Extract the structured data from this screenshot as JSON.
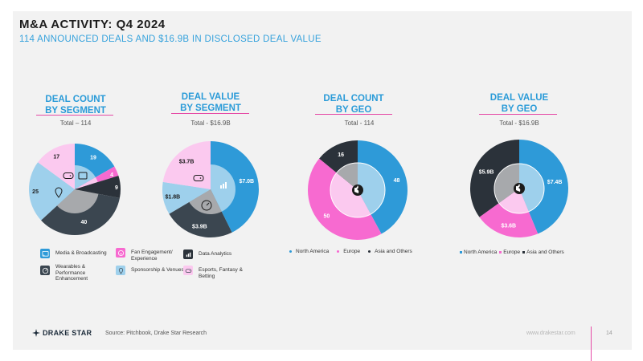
{
  "header": {
    "title": "M&A ACTIVITY: Q4 2024",
    "subtitle": "114 ANNOUNCED DEALS AND $16.9B IN DISCLOSED DEAL VALUE"
  },
  "colors": {
    "blue": "#2e9ad8",
    "pink": "#f76ad0",
    "dark": "#2b323a",
    "light_blue": "#9ed0ec",
    "light_pink": "#fbc9ef",
    "slate": "#3b4650",
    "gray_inner": "#a7a9ac"
  },
  "chart_data": [
    {
      "type": "pie",
      "title_line1": "DEAL COUNT",
      "title_line2": "BY SEGMENT",
      "total": "Total – 114",
      "labels": [
        "Media & Broadcasting",
        "Fan Engagement/ Experience",
        "Data Analytics",
        "Wearables & Performance Enhancement",
        "Sponsorship & Venues",
        "Esports, Fantasy & Betting"
      ],
      "values": [
        19,
        4,
        9,
        40,
        25,
        17
      ],
      "value_labels": [
        "19",
        "4",
        "9",
        "40",
        "25",
        "17"
      ]
    },
    {
      "type": "pie",
      "title_line1": "DEAL VALUE",
      "title_line2": "BY SEGMENT",
      "total": "Total - $16.9B",
      "labels": [
        "Media & Broadcasting",
        "Wearables & Performance Enhancement",
        "Sponsorship & Venues",
        "Esports, Fantasy & Betting"
      ],
      "values": [
        7.0,
        3.9,
        1.8,
        3.7
      ],
      "value_labels": [
        "$7.0B",
        "$3.9B",
        "$1.8B",
        "$3.7B"
      ]
    },
    {
      "type": "pie",
      "title_line1": "DEAL COUNT",
      "title_line2": "BY GEO",
      "total": "Total - 114",
      "labels": [
        "North America",
        "Europe",
        "Asia and Others"
      ],
      "values": [
        48,
        50,
        16
      ],
      "value_labels": [
        "48",
        "50",
        "16"
      ]
    },
    {
      "type": "pie",
      "title_line1": "DEAL VALUE",
      "title_line2": "BY GEO",
      "total": "Total - $16.9B",
      "labels": [
        "North America",
        "Europe",
        "Asia and Others"
      ],
      "values": [
        7.4,
        3.6,
        5.9
      ],
      "value_labels": [
        "$7.4B",
        "$3.6B",
        "$5.9B"
      ]
    }
  ],
  "segment_legend": [
    {
      "label": "Media & Broadcasting",
      "icon": "cast-icon"
    },
    {
      "label": "Fan Engagement/ Experience",
      "icon": "smile-icon"
    },
    {
      "label": "Data Analytics",
      "icon": "bar-chart-icon"
    },
    {
      "label": "Wearables & Performance Enhancement",
      "icon": "speedometer-icon"
    },
    {
      "label": "Sponsorship & Venues",
      "icon": "location-pin-icon"
    },
    {
      "label": "Esports, Fantasy & Betting",
      "icon": "gamepad-icon"
    }
  ],
  "geo_legend_count": [
    "North America",
    "Europe",
    "Asia and Others"
  ],
  "geo_legend_value": [
    "North America",
    "Europe",
    "Asia and Others"
  ],
  "footer": {
    "logo": "DRAKE STAR",
    "source": "Source: Pitchbook, Drake Star Research",
    "url": "www.drakestar.com",
    "page": "14"
  }
}
